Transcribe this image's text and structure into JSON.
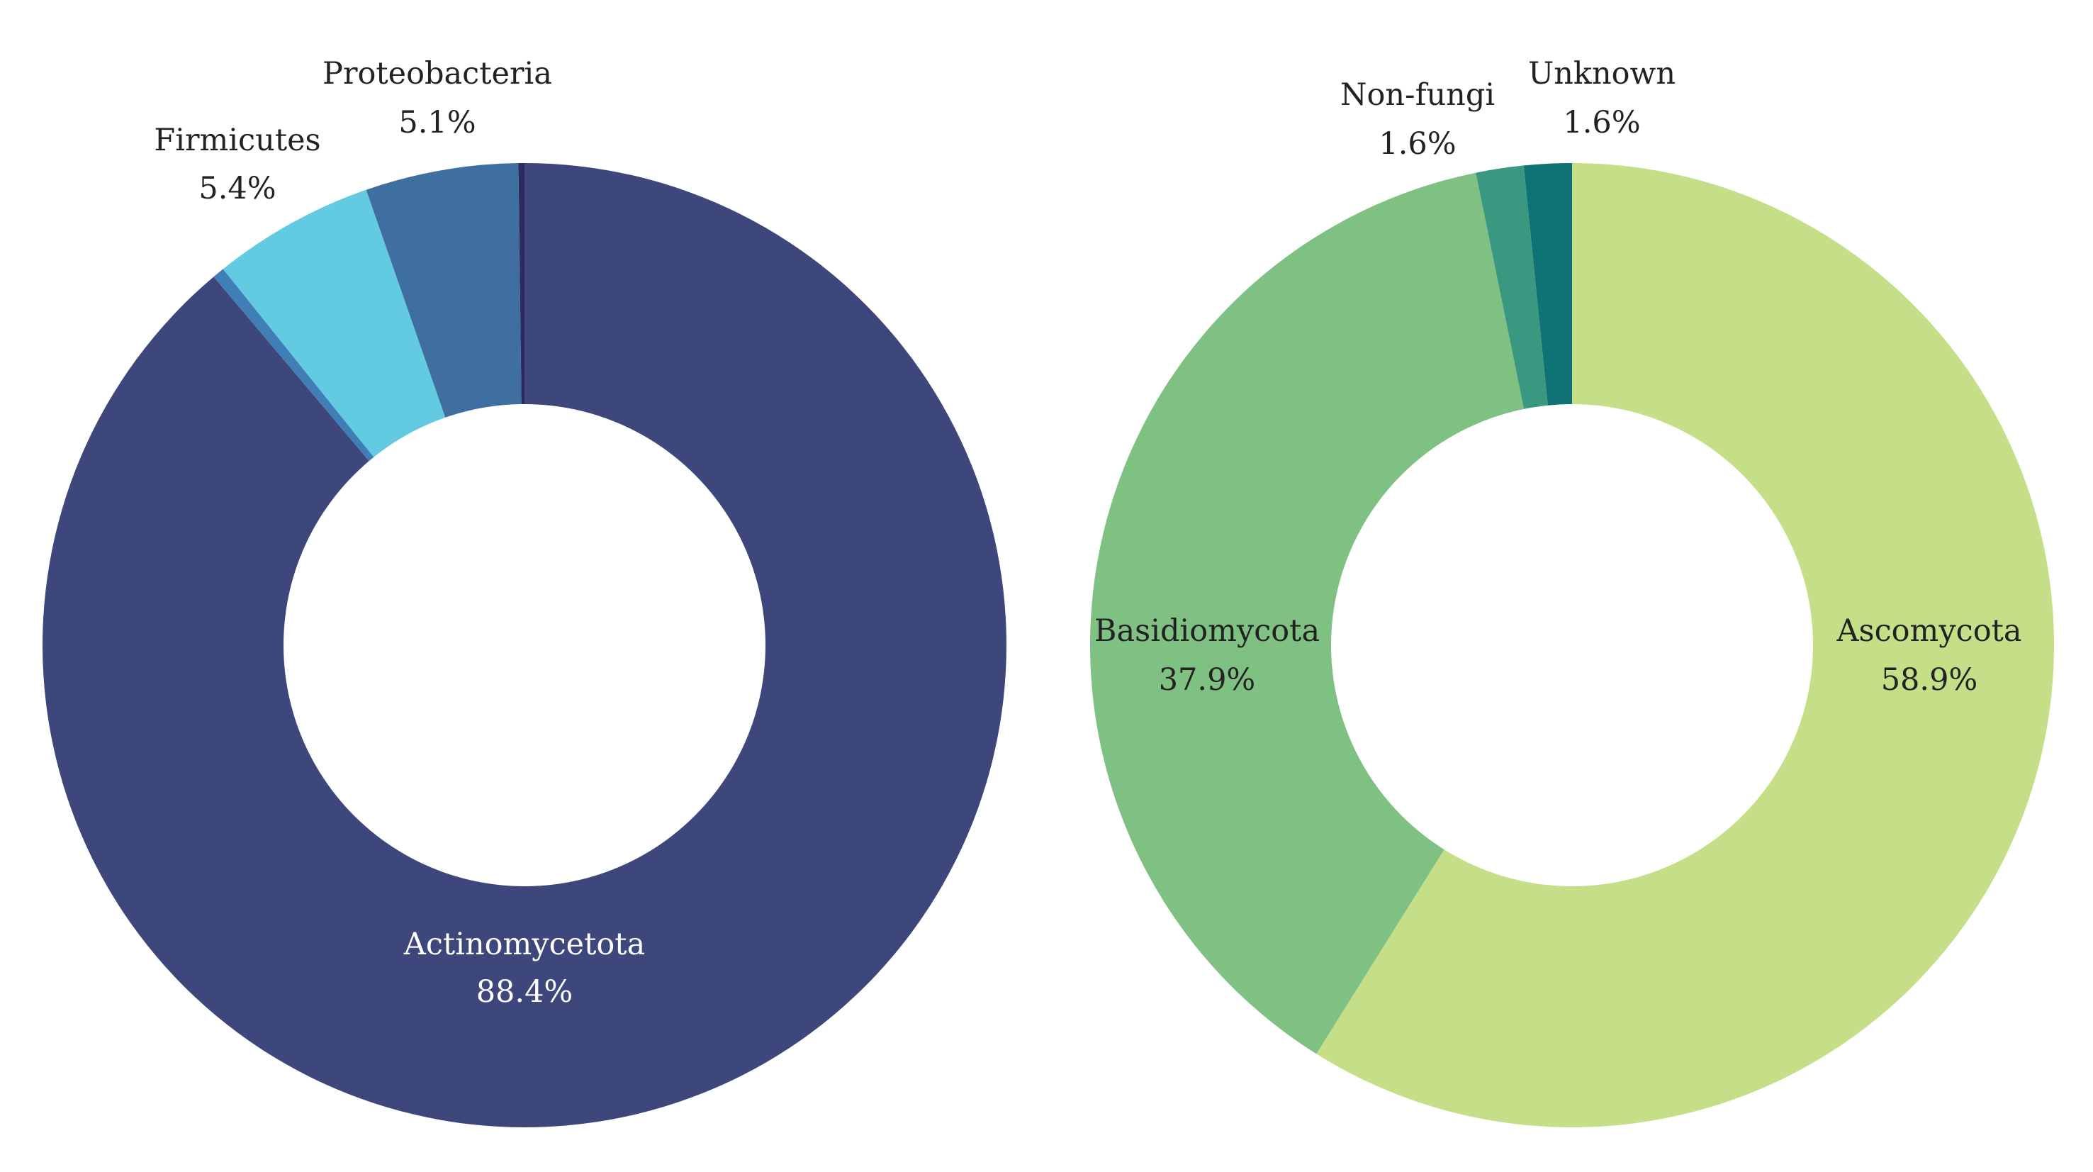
{
  "chart_data": [
    {
      "type": "pie",
      "donut": true,
      "title": "",
      "categories": [
        "Actinomycetota",
        "Unlabeled",
        "Firmicutes",
        "Proteobacteria",
        "Unlabeled"
      ],
      "values": [
        88.4,
        0.4,
        5.4,
        5.1,
        0.2
      ],
      "colors": [
        "#3d477b",
        "#3f7fb5",
        "#63cbe1",
        "#3e6fa0",
        "#2d2c5f"
      ],
      "labels": [
        {
          "name": "Actinomycetota",
          "value_text": "88.4%",
          "text_color": "#ffffff"
        },
        {
          "name": "Firmicutes",
          "value_text": "5.4%",
          "text_color": "#222222"
        },
        {
          "name": "Proteobacteria",
          "value_text": "5.1%",
          "text_color": "#222222"
        }
      ],
      "legend": "none"
    },
    {
      "type": "pie",
      "donut": true,
      "title": "",
      "categories": [
        "Ascomycota",
        "Basidiomycota",
        "Non-fungi",
        "Unknown"
      ],
      "values": [
        58.9,
        37.9,
        1.6,
        1.6
      ],
      "colors": [
        "#c4df87",
        "#7fc083",
        "#3a9880",
        "#0f7274"
      ],
      "labels": [
        {
          "name": "Ascomycota",
          "value_text": "58.9%",
          "text_color": "#222222"
        },
        {
          "name": "Basidiomycota",
          "value_text": "37.9%",
          "text_color": "#222222"
        },
        {
          "name": "Non-fungi",
          "value_text": "1.6%",
          "text_color": "#222222"
        },
        {
          "name": "Unknown",
          "value_text": "1.6%",
          "text_color": "#222222"
        }
      ],
      "legend": "none"
    }
  ]
}
